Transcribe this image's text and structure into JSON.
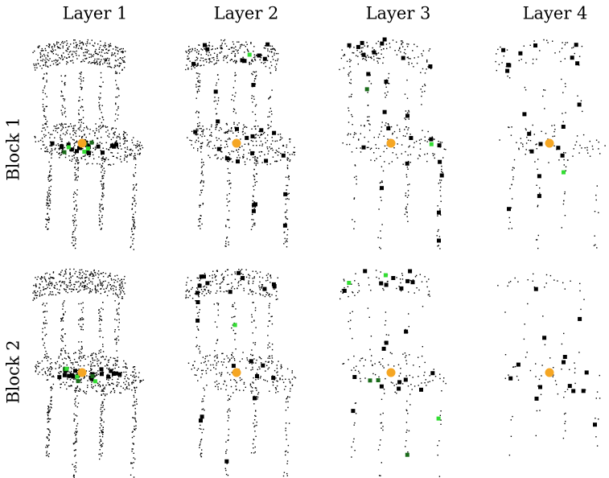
{
  "columns": [
    "Layer 1",
    "Layer 2",
    "Layer 3",
    "Layer 4"
  ],
  "rows": [
    "Block 1",
    "Block 2"
  ]
}
